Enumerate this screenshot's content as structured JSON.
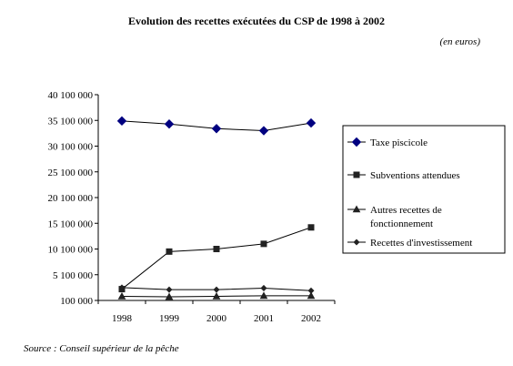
{
  "chart_data": {
    "type": "line",
    "title": "Evolution des recettes exécutées du CSP de 1998 à 2002",
    "unit_note": "(en euros)",
    "source": "Source : Conseil supérieur de la pêche",
    "x": [
      "1998",
      "1999",
      "2000",
      "2001",
      "2002"
    ],
    "y_ticks": [
      "100 000",
      "5 100 000",
      "10 100 000",
      "15 100 000",
      "20 100 000",
      "25 100 000",
      "30 100 000",
      "35 100 000",
      "40 100 000"
    ],
    "ylim": [
      100000,
      40100000
    ],
    "legend_position": "right",
    "series": [
      {
        "name": "Taxe piscicole",
        "marker": "diamond-large",
        "values": [
          35000000,
          34400000,
          33500000,
          33100000,
          34600000
        ]
      },
      {
        "name": "Subventions attendues",
        "marker": "square",
        "values": [
          2300000,
          9600000,
          10100000,
          11100000,
          14300000
        ]
      },
      {
        "name": "Autres recettes de fonctionnement",
        "name_lines": [
          "Autres recettes de",
          "fonctionnement"
        ],
        "marker": "triangle",
        "values": [
          900000,
          800000,
          900000,
          1000000,
          1000000
        ]
      },
      {
        "name": "Recettes d'investissement",
        "marker": "diamond-small",
        "values": [
          2600000,
          2200000,
          2200000,
          2500000,
          2000000
        ]
      }
    ],
    "colors": {
      "marker": "#000080",
      "line": "#000000"
    }
  }
}
